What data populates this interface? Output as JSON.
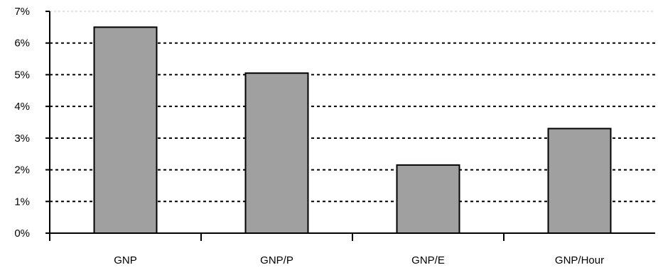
{
  "chart_data": {
    "type": "bar",
    "categories": [
      "GNP",
      "GNP/P",
      "GNP/E",
      "GNP/Hour"
    ],
    "values": [
      6.5,
      5.05,
      2.15,
      3.3
    ],
    "ylim": [
      0,
      7
    ],
    "yticks": [
      0,
      1,
      2,
      3,
      4,
      5,
      6,
      7
    ],
    "ytick_labels": [
      "0%",
      "1%",
      "2%",
      "3%",
      "4%",
      "5%",
      "6%",
      "7%"
    ],
    "grid": "dotted horizontal",
    "bar_color": "#a0a0a1",
    "bar_edge_color": "#000000"
  }
}
